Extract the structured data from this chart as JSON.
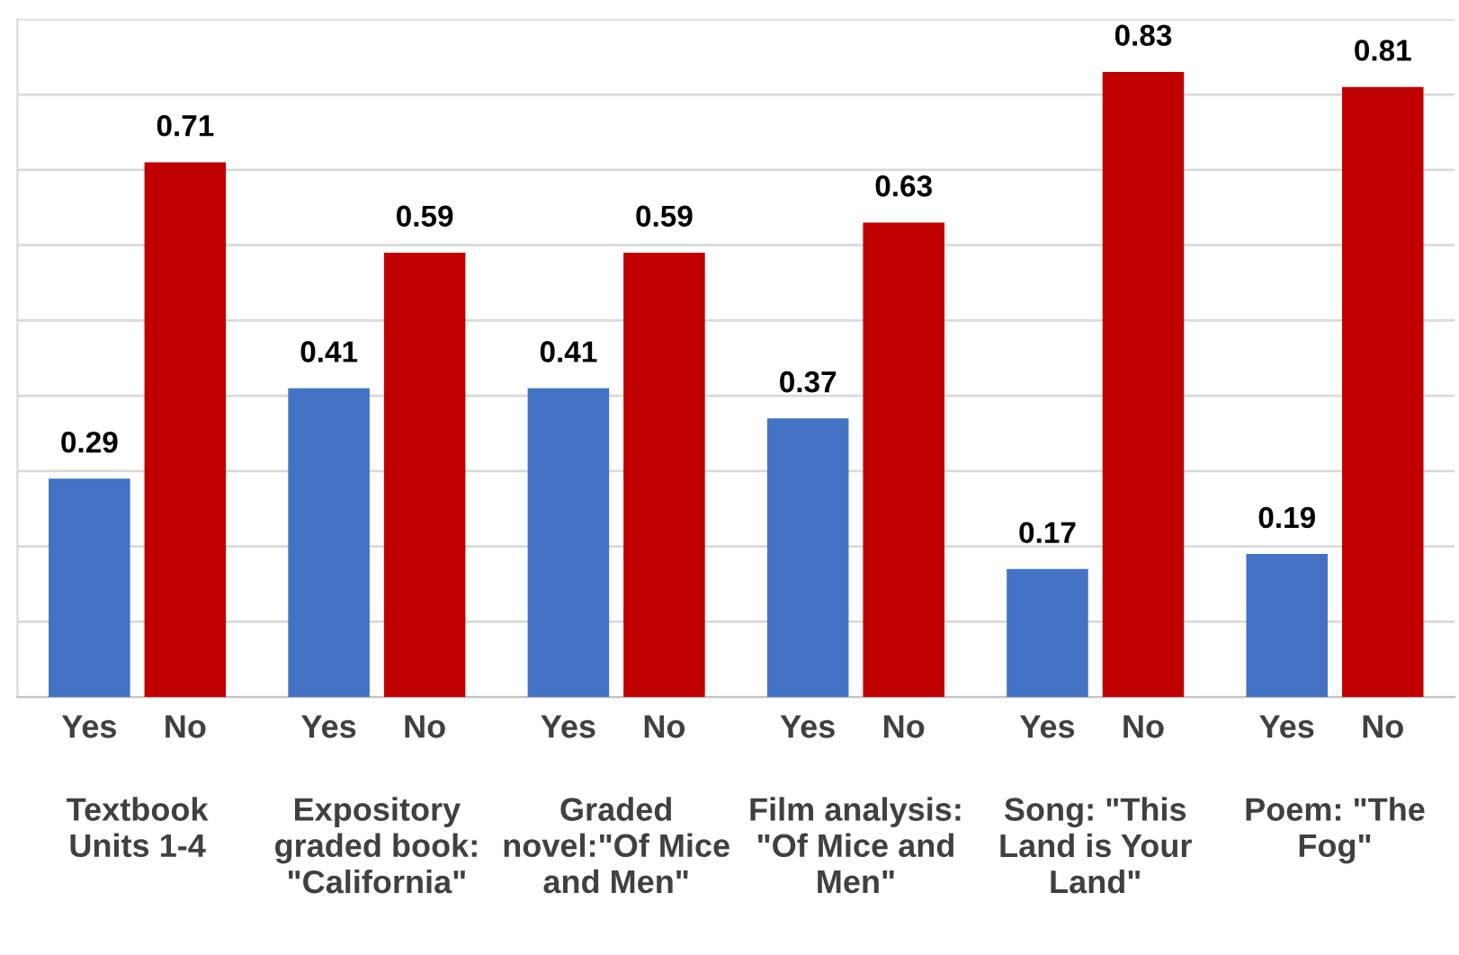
{
  "chart_data": {
    "type": "bar",
    "categories": [
      "Textbook\nUnits 1-4",
      "Expository\ngraded book:\n\"California\"",
      "Graded\nnovel:\"Of Mice\nand Men\"",
      "Film analysis:\n\"Of Mice and\nMen\"",
      "Song: \"This\nLand is Your\nLand\"",
      "Poem: \"The\nFog\""
    ],
    "series": [
      {
        "name": "Yes",
        "color": "#4472c4",
        "values": [
          0.29,
          0.41,
          0.41,
          0.37,
          0.17,
          0.19
        ]
      },
      {
        "name": "No",
        "color": "#c00000",
        "values": [
          0.71,
          0.59,
          0.59,
          0.63,
          0.83,
          0.81
        ]
      }
    ],
    "ylim": [
      0,
      0.9
    ],
    "yticks": [
      {
        "value": 0,
        "label": null
      },
      {
        "value": 0.1,
        "label": null
      },
      {
        "value": 0.2,
        "label": null
      },
      {
        "value": 0.3,
        "label": null
      },
      {
        "value": 0.4,
        "label": null
      },
      {
        "value": 0.5,
        "label": null
      },
      {
        "value": 0.6,
        "label": null
      },
      {
        "value": 0.7,
        "label": null
      },
      {
        "value": 0.8,
        "label": null
      },
      {
        "value": 0.9,
        "label": null
      }
    ],
    "tick_labels": "x",
    "grid": "y",
    "data_labels": true
  }
}
